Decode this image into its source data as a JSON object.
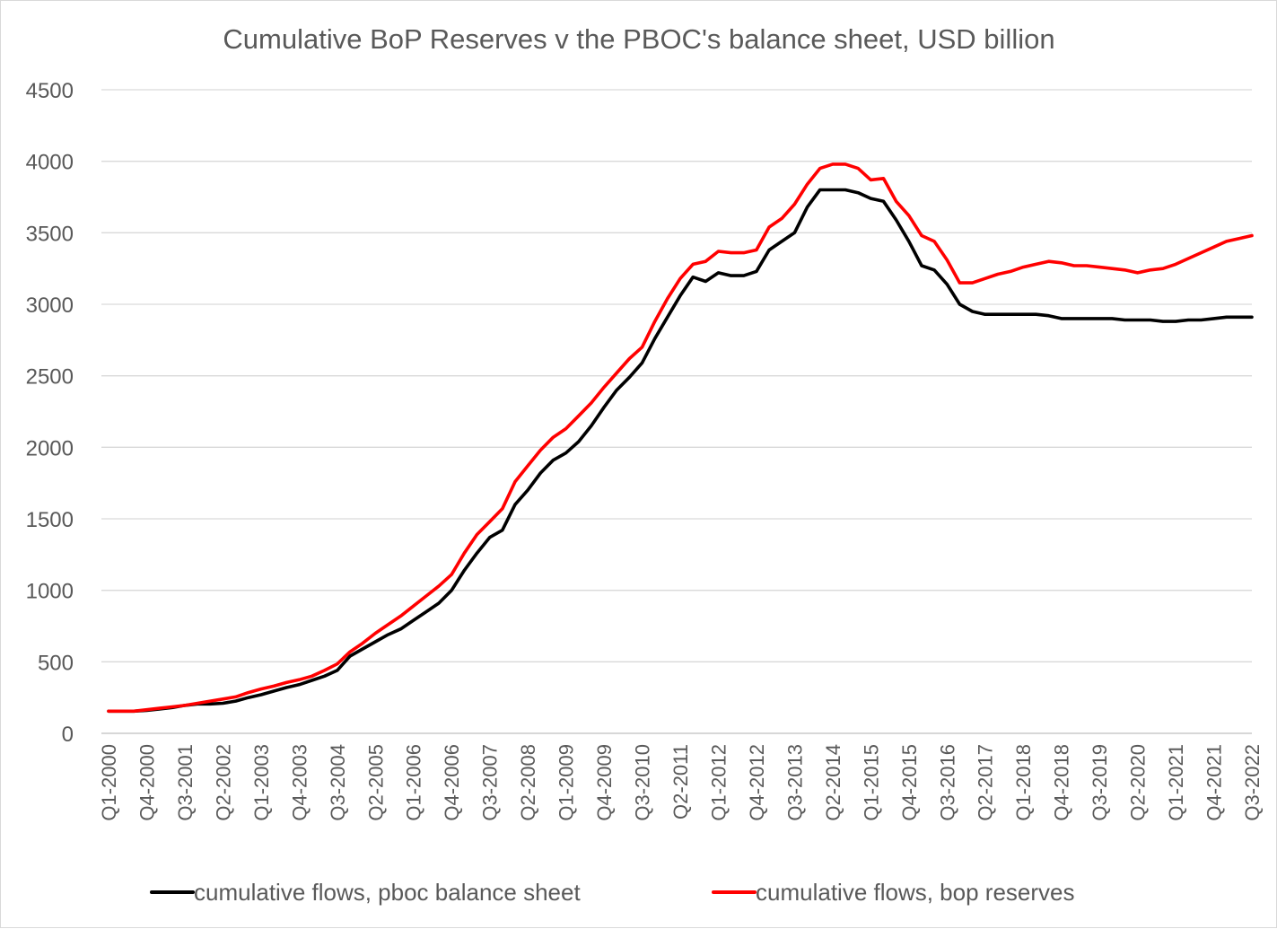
{
  "chart_data": {
    "type": "line",
    "title": "Cumulative BoP Reserves v the  PBOC's balance sheet, USD billion",
    "xlabel": "",
    "ylabel": "",
    "ylim": [
      0,
      4500
    ],
    "yticks": [
      0,
      500,
      1000,
      1500,
      2000,
      2500,
      3000,
      3500,
      4000,
      4500
    ],
    "grid": true,
    "legend_position": "bottom",
    "x_tick_labels": [
      "Q1-2000",
      "Q4-2000",
      "Q3-2001",
      "Q2-2002",
      "Q1-2003",
      "Q4-2003",
      "Q3-2004",
      "Q2-2005",
      "Q1-2006",
      "Q4-2006",
      "Q3-2007",
      "Q2-2008",
      "Q1-2009",
      "Q4-2009",
      "Q3-2010",
      "Q2-2011",
      "Q1-2012",
      "Q4-2012",
      "Q3-2013",
      "Q2-2014",
      "Q1-2015",
      "Q4-2015",
      "Q3-2016",
      "Q2-2017",
      "Q1-2018",
      "Q4-2018",
      "Q3-2019",
      "Q2-2020",
      "Q1-2021",
      "Q4-2021",
      "Q3-2022"
    ],
    "categories": [
      "Q1-2000",
      "Q2-2000",
      "Q3-2000",
      "Q4-2000",
      "Q1-2001",
      "Q2-2001",
      "Q3-2001",
      "Q4-2001",
      "Q1-2002",
      "Q2-2002",
      "Q3-2002",
      "Q4-2002",
      "Q1-2003",
      "Q2-2003",
      "Q3-2003",
      "Q4-2003",
      "Q1-2004",
      "Q2-2004",
      "Q3-2004",
      "Q4-2004",
      "Q1-2005",
      "Q2-2005",
      "Q3-2005",
      "Q4-2005",
      "Q1-2006",
      "Q2-2006",
      "Q3-2006",
      "Q4-2006",
      "Q1-2007",
      "Q2-2007",
      "Q3-2007",
      "Q4-2007",
      "Q1-2008",
      "Q2-2008",
      "Q3-2008",
      "Q4-2008",
      "Q1-2009",
      "Q2-2009",
      "Q3-2009",
      "Q4-2009",
      "Q1-2010",
      "Q2-2010",
      "Q3-2010",
      "Q4-2010",
      "Q1-2011",
      "Q2-2011",
      "Q3-2011",
      "Q4-2011",
      "Q1-2012",
      "Q2-2012",
      "Q3-2012",
      "Q4-2012",
      "Q1-2013",
      "Q2-2013",
      "Q3-2013",
      "Q4-2013",
      "Q1-2014",
      "Q2-2014",
      "Q3-2014",
      "Q4-2014",
      "Q1-2015",
      "Q2-2015",
      "Q3-2015",
      "Q4-2015",
      "Q1-2016",
      "Q2-2016",
      "Q3-2016",
      "Q4-2016",
      "Q1-2017",
      "Q2-2017",
      "Q3-2017",
      "Q4-2017",
      "Q1-2018",
      "Q2-2018",
      "Q3-2018",
      "Q4-2018",
      "Q1-2019",
      "Q2-2019",
      "Q3-2019",
      "Q4-2019",
      "Q1-2020",
      "Q2-2020",
      "Q3-2020",
      "Q4-2020",
      "Q1-2021",
      "Q2-2021",
      "Q3-2021",
      "Q4-2021",
      "Q1-2022",
      "Q2-2022",
      "Q3-2022"
    ],
    "series": [
      {
        "name": "cumulative flows, pboc balance sheet",
        "color": "#000000",
        "values": [
          155,
          155,
          155,
          160,
          170,
          180,
          195,
          205,
          205,
          210,
          225,
          250,
          270,
          295,
          320,
          340,
          370,
          400,
          440,
          540,
          590,
          640,
          690,
          730,
          790,
          850,
          910,
          1000,
          1140,
          1260,
          1370,
          1420,
          1600,
          1700,
          1820,
          1910,
          1960,
          2040,
          2150,
          2280,
          2400,
          2490,
          2590,
          2760,
          2910,
          3060,
          3190,
          3160,
          3220,
          3200,
          3200,
          3230,
          3380,
          3440,
          3500,
          3680,
          3800,
          3800,
          3800,
          3780,
          3740,
          3720,
          3590,
          3440,
          3270,
          3240,
          3140,
          3000,
          2950,
          2930,
          2930,
          2930,
          2930,
          2930,
          2920,
          2900,
          2900,
          2900,
          2900,
          2900,
          2890,
          2890,
          2890,
          2880,
          2880,
          2890,
          2890,
          2900,
          2910,
          2910,
          2910
        ]
      },
      {
        "name": "cumulative flows, bop reserves",
        "color": "#ff0000",
        "values": [
          155,
          155,
          155,
          165,
          175,
          185,
          195,
          210,
          225,
          240,
          255,
          285,
          310,
          330,
          355,
          375,
          400,
          440,
          485,
          570,
          630,
          700,
          760,
          820,
          890,
          960,
          1030,
          1110,
          1260,
          1390,
          1480,
          1570,
          1760,
          1870,
          1980,
          2070,
          2130,
          2220,
          2310,
          2420,
          2520,
          2620,
          2700,
          2880,
          3040,
          3180,
          3280,
          3300,
          3370,
          3360,
          3360,
          3380,
          3540,
          3600,
          3700,
          3840,
          3950,
          3980,
          3980,
          3950,
          3870,
          3880,
          3720,
          3620,
          3480,
          3440,
          3310,
          3150,
          3150,
          3180,
          3210,
          3230,
          3260,
          3280,
          3300,
          3290,
          3270,
          3270,
          3260,
          3250,
          3240,
          3220,
          3240,
          3250,
          3280,
          3320,
          3360,
          3400,
          3440,
          3460,
          3480
        ]
      }
    ]
  }
}
